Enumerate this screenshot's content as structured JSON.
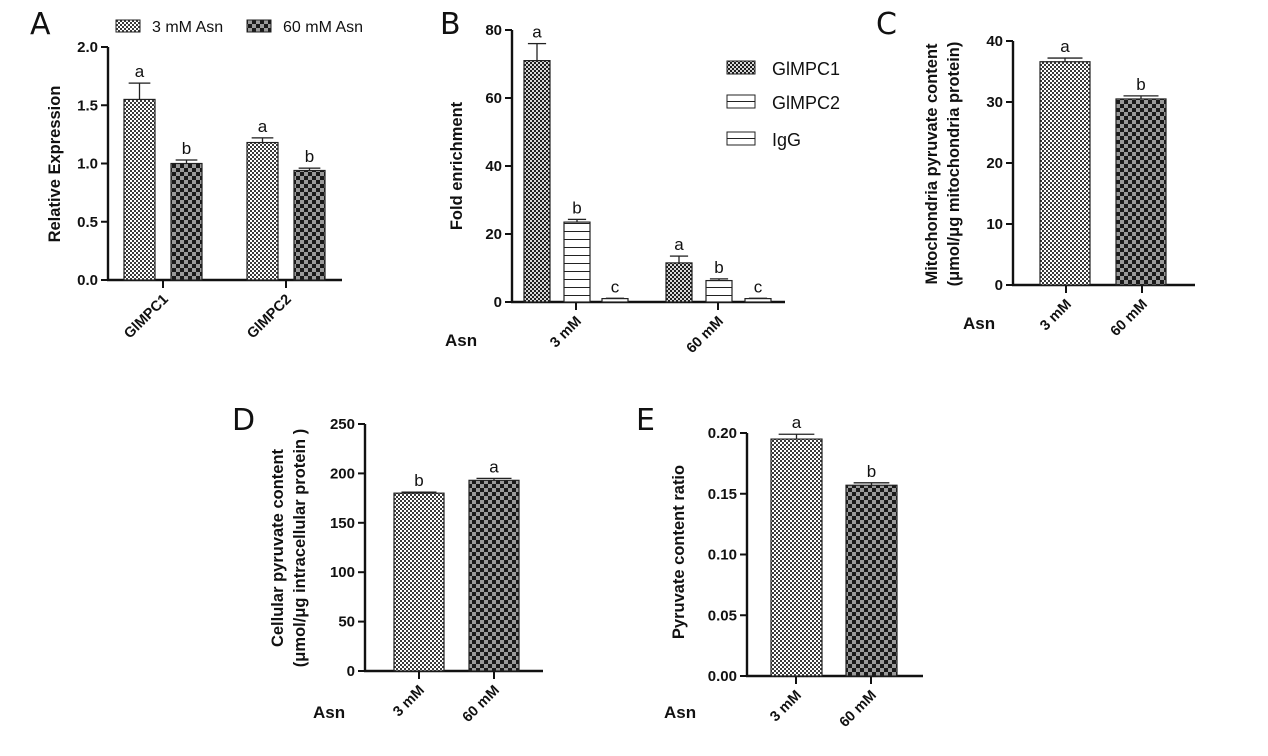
{
  "figure": {
    "colors": {
      "axis": "#111111",
      "fine_check_light": "#ffffff",
      "fine_check_dark": "#3a3a3a",
      "coarse_check_light": "#9a9a9a",
      "coarse_check_dark": "#1a1a1a",
      "stripe": "#222222"
    }
  },
  "chart_data": [
    {
      "panel": "A",
      "type": "bar",
      "ylabel": "Relative Expression",
      "xlabel": "",
      "categories": [
        "GlMPC1",
        "GlMPC2"
      ],
      "ylim": [
        0,
        2.0
      ],
      "yticks": [
        "0.0",
        "0.5",
        "1.0",
        "1.5",
        "2.0"
      ],
      "ytick_values": [
        0,
        0.5,
        1.0,
        1.5,
        2.0
      ],
      "legend_position": "top",
      "series": [
        {
          "name": "3 mM Asn",
          "pattern": "fine-check",
          "values": [
            1.55,
            1.18
          ],
          "errors": [
            0.14,
            0.04
          ],
          "sig": [
            "a",
            "a"
          ]
        },
        {
          "name": "60 mM Asn",
          "pattern": "coarse-check",
          "values": [
            1.0,
            0.94
          ],
          "errors": [
            0.03,
            0.02
          ],
          "sig": [
            "b",
            "b"
          ]
        }
      ]
    },
    {
      "panel": "B",
      "type": "bar",
      "ylabel": "Fold enrichment",
      "xlabel": "Asn",
      "categories": [
        "3 mM",
        "60 mM"
      ],
      "ylim": [
        0,
        80
      ],
      "yticks": [
        "0",
        "20",
        "40",
        "60",
        "80"
      ],
      "ytick_values": [
        0,
        20,
        40,
        60,
        80
      ],
      "legend_position": "top-right",
      "series": [
        {
          "name": "GlMPC1",
          "pattern": "fine-check-dark",
          "values": [
            71,
            11.5
          ],
          "errors": [
            5,
            2
          ],
          "sig": [
            "a",
            "a"
          ]
        },
        {
          "name": "GlMPC2",
          "pattern": "stripes",
          "values": [
            23.5,
            6.3
          ],
          "errors": [
            0.8,
            0.5
          ],
          "sig": [
            "b",
            "b"
          ]
        },
        {
          "name": "IgG",
          "pattern": "stripes",
          "values": [
            1.0,
            1.0
          ],
          "errors": [
            0.1,
            0.1
          ],
          "sig": [
            "c",
            "c"
          ]
        }
      ]
    },
    {
      "panel": "C",
      "type": "bar",
      "ylabel": "Mitochondria pyruvate content",
      "ylabel2": "(μmol/μg mitochondria protein)",
      "xlabel": "Asn",
      "categories": [
        "3 mM",
        "60 mM"
      ],
      "ylim": [
        0,
        40
      ],
      "yticks": [
        "0",
        "10",
        "20",
        "30",
        "40"
      ],
      "ytick_values": [
        0,
        10,
        20,
        30,
        40
      ],
      "series": [
        {
          "name": "Asn",
          "patterns": [
            "fine-check",
            "coarse-check"
          ],
          "values": [
            36.6,
            30.5
          ],
          "errors": [
            0.6,
            0.5
          ],
          "sig": [
            "a",
            "b"
          ]
        }
      ]
    },
    {
      "panel": "D",
      "type": "bar",
      "ylabel": "Cellular pyruvate content",
      "ylabel2": "(μmol/μg intracellular protein )",
      "xlabel": "Asn",
      "categories": [
        "3 mM",
        "60 mM"
      ],
      "ylim": [
        0,
        250
      ],
      "yticks": [
        "0",
        "50",
        "100",
        "150",
        "200",
        "250"
      ],
      "ytick_values": [
        0,
        50,
        100,
        150,
        200,
        250
      ],
      "series": [
        {
          "name": "Asn",
          "patterns": [
            "fine-check",
            "coarse-check"
          ],
          "values": [
            180,
            193
          ],
          "errors": [
            1,
            2
          ],
          "sig": [
            "b",
            "a"
          ]
        }
      ]
    },
    {
      "panel": "E",
      "type": "bar",
      "ylabel": "Pyruvate content ratio",
      "xlabel": "Asn",
      "categories": [
        "3 mM",
        "60 mM"
      ],
      "ylim": [
        0,
        0.2
      ],
      "yticks": [
        "0.00",
        "0.05",
        "0.10",
        "0.15",
        "0.20"
      ],
      "ytick_values": [
        0,
        0.05,
        0.1,
        0.15,
        0.2
      ],
      "series": [
        {
          "name": "Asn",
          "patterns": [
            "fine-check",
            "coarse-check"
          ],
          "values": [
            0.195,
            0.157
          ],
          "errors": [
            0.004,
            0.002
          ],
          "sig": [
            "a",
            "b"
          ]
        }
      ]
    }
  ]
}
